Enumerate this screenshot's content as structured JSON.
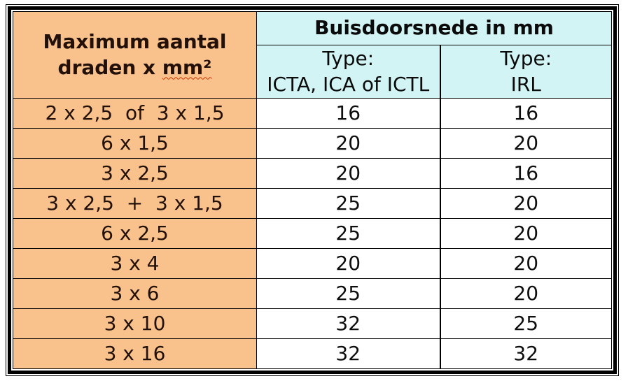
{
  "colors": {
    "left_bg": "#F9C28C",
    "header_bg": "#D2F4F5",
    "border": "#000000",
    "squiggle": "#CC3300",
    "label_text": "#231008",
    "number_text": "#0E0E0E"
  },
  "table": {
    "row_group_header": {
      "line1": "Maximum aantal",
      "line2_prefix": "draden x ",
      "line2_word": "mm²"
    },
    "col_group_header": "Buisdoorsnede in mm",
    "subheaders": {
      "icta": {
        "line1": "Type:",
        "line2": "ICTA, ICA of ICTL"
      },
      "irl": {
        "line1": "Type:",
        "line2": "IRL"
      }
    },
    "rows": [
      {
        "label": "2 x 2,5  of  3 x 1,5",
        "icta": "16",
        "irl": "16"
      },
      {
        "label": "6 x 1,5",
        "icta": "20",
        "irl": "20"
      },
      {
        "label": "3 x 2,5",
        "icta": "20",
        "irl": "16"
      },
      {
        "label": "3 x 2,5  +  3 x 1,5",
        "icta": "25",
        "irl": "20"
      },
      {
        "label": "6 x 2,5",
        "icta": "25",
        "irl": "20"
      },
      {
        "label": "3 x 4",
        "icta": "20",
        "irl": "20"
      },
      {
        "label": "3 x 6",
        "icta": "25",
        "irl": "20"
      },
      {
        "label": "3 x 10",
        "icta": "32",
        "irl": "25"
      },
      {
        "label": "3 x 16",
        "icta": "32",
        "irl": "32"
      }
    ]
  }
}
